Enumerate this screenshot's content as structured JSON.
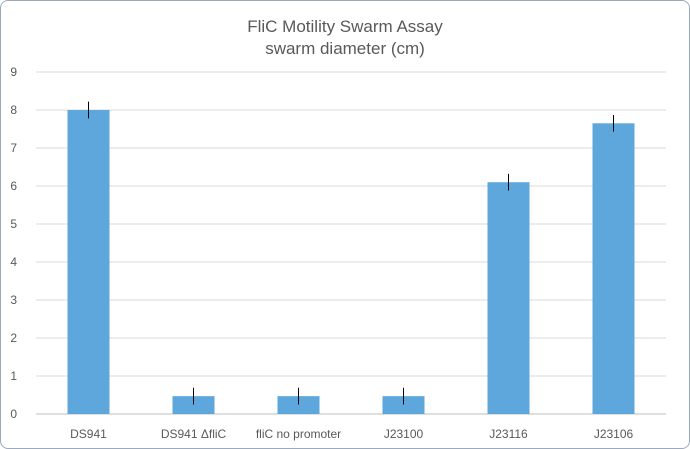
{
  "chart_data": {
    "type": "bar",
    "title": "FliC Motility Swarm Assay",
    "subtitle": "swarm diameter (cm)",
    "xlabel": "",
    "ylabel": "",
    "categories": [
      "DS941",
      "DS941 ΔfliC",
      "fliC no promoter",
      "J23100",
      "J23116",
      "J23106"
    ],
    "values": [
      8.0,
      0.47,
      0.47,
      0.47,
      6.1,
      7.65
    ],
    "error": [
      0.22,
      0.22,
      0.22,
      0.22,
      0.22,
      0.22
    ],
    "ylim": [
      0,
      9
    ],
    "yticks": [
      0,
      1,
      2,
      3,
      4,
      5,
      6,
      7,
      8,
      9
    ],
    "grid": true,
    "legend": "none",
    "colors": {
      "bar": "#5ea7dd",
      "error_bar": "#000000",
      "grid": "#d9d9d9",
      "axis": "#bfbfbf",
      "text": "#595959"
    }
  }
}
